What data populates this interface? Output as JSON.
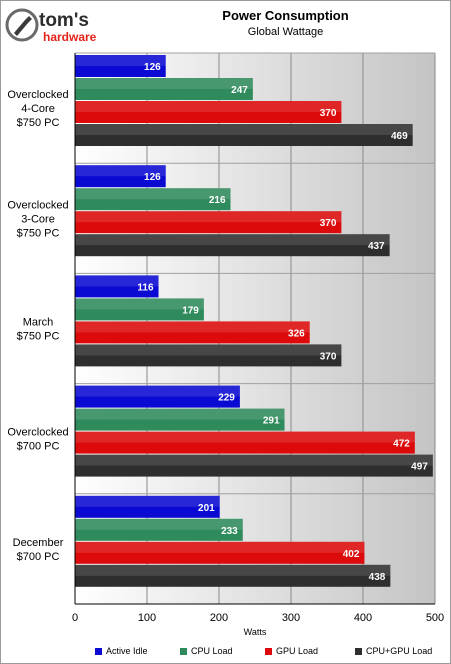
{
  "logo": {
    "line1": "tom's",
    "line2": "hardware"
  },
  "chart_data": {
    "type": "bar",
    "orientation": "horizontal",
    "title": "Power Consumption",
    "subtitle": "Global Wattage",
    "xlabel": "Watts",
    "xlim": [
      0,
      500
    ],
    "xticks": [
      0,
      100,
      200,
      300,
      400,
      500
    ],
    "grid": true,
    "legend_position": "bottom",
    "categories": [
      [
        "Overclocked",
        "4-Core",
        "$750 PC"
      ],
      [
        "Overclocked",
        "3-Core",
        "$750 PC"
      ],
      [
        "March",
        "$750 PC"
      ],
      [
        "Overclocked",
        "$700 PC"
      ],
      [
        "December",
        "$700 PC"
      ]
    ],
    "series": [
      {
        "name": "Active Idle",
        "color": "#0a0ad2",
        "values": [
          126,
          126,
          116,
          229,
          201
        ]
      },
      {
        "name": "CPU Load",
        "color": "#2f8a5c",
        "values": [
          247,
          216,
          179,
          291,
          233
        ]
      },
      {
        "name": "GPU Load",
        "color": "#dc0a0a",
        "values": [
          370,
          370,
          326,
          472,
          402
        ]
      },
      {
        "name": "CPU+GPU Load",
        "color": "#2e2e2e",
        "values": [
          469,
          437,
          370,
          497,
          438
        ]
      }
    ]
  }
}
